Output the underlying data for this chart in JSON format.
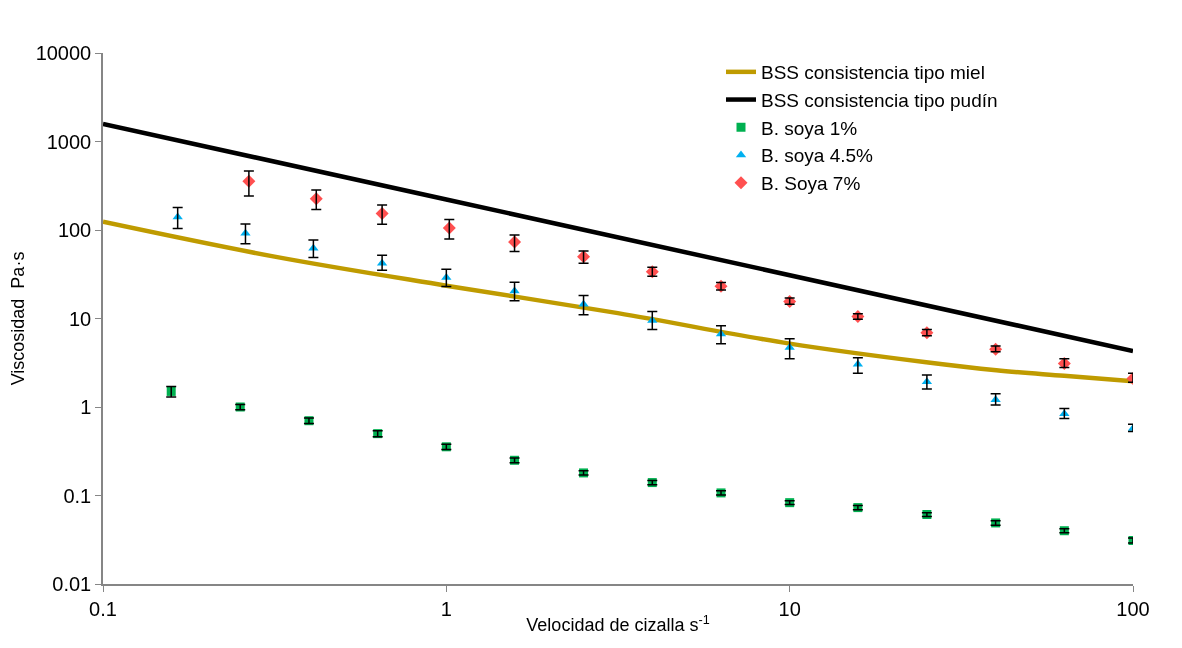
{
  "chart_data": {
    "type": "scatter",
    "xlabel": "Velocidad de cizalla s$^{-1}$",
    "ylabel": "Viscosidad  Pa·s",
    "log": "xy",
    "xlim": [
      0.1,
      100
    ],
    "xticks": [
      0.1,
      1,
      10,
      100
    ],
    "ylim": [
      0.01,
      10000
    ],
    "yticks": [
      0.01,
      0.1,
      1,
      10,
      100,
      1000,
      10000
    ],
    "legend": "top right",
    "series": [
      {
        "name": "BSS consistencia tipo miel",
        "type": "line",
        "color": "#bf9b00",
        "line_style": "solid",
        "marker": "none",
        "x": [
          0.1,
          0.316,
          1,
          3.16,
          10,
          25,
          40,
          63,
          100
        ],
        "values": [
          124,
          50,
          23.5,
          11.5,
          5.2,
          3.2,
          2.6,
          2.25,
          1.95
        ]
      },
      {
        "name": "BSS consistencia tipo pudín",
        "type": "line",
        "color": "#000000",
        "line_style": "solid",
        "marker": "none",
        "x": [
          0.1,
          1,
          100
        ],
        "values": [
          1580,
          221,
          4.3
        ]
      },
      {
        "name": "B. soya 1%",
        "color": "#00b050",
        "marker": "square",
        "x": [
          0.158,
          0.251,
          0.398,
          0.631,
          1,
          1.58,
          2.51,
          3.98,
          6.31,
          10,
          15.8,
          25.1,
          39.8,
          63.1,
          100
        ],
        "values": [
          1.5,
          1.0,
          0.7,
          0.5,
          0.355,
          0.25,
          0.18,
          0.14,
          0.107,
          0.083,
          0.073,
          0.061,
          0.049,
          0.04,
          0.031
        ],
        "errors": [
          [
            1.3,
            1.7
          ],
          [
            0.93,
            1.07
          ],
          [
            0.65,
            0.75
          ],
          [
            0.46,
            0.54
          ],
          [
            0.33,
            0.38
          ],
          [
            0.235,
            0.265
          ],
          [
            0.17,
            0.19
          ],
          [
            0.132,
            0.148
          ],
          [
            0.101,
            0.113
          ],
          [
            0.079,
            0.087
          ],
          [
            0.069,
            0.077
          ],
          [
            0.058,
            0.064
          ],
          [
            0.046,
            0.052
          ],
          [
            0.038,
            0.042
          ],
          [
            0.029,
            0.033
          ]
        ]
      },
      {
        "name": "B. soya 4.5%",
        "color": "#00b0f0",
        "marker": "triangle",
        "x": [
          0.165,
          0.26,
          0.41,
          0.65,
          1,
          1.58,
          2.51,
          3.98,
          6.31,
          10,
          15.8,
          25.1,
          39.8,
          63.1,
          100
        ],
        "values": [
          140,
          92,
          62,
          42,
          29,
          20.5,
          14.5,
          9.5,
          6.7,
          4.7,
          3.05,
          1.93,
          1.21,
          0.84,
          0.57
        ],
        "errors": [
          [
            104,
            180
          ],
          [
            70,
            117
          ],
          [
            49,
            77
          ],
          [
            35,
            52
          ],
          [
            23,
            36
          ],
          [
            15.9,
            25.6
          ],
          [
            11,
            18.2
          ],
          [
            7.5,
            12
          ],
          [
            5.2,
            8.3
          ],
          [
            3.5,
            5.9
          ],
          [
            2.4,
            3.6
          ],
          [
            1.6,
            2.3
          ],
          [
            1.05,
            1.41
          ],
          [
            0.74,
            0.96
          ],
          [
            0.53,
            0.64
          ]
        ]
      },
      {
        "name": "B. Soya 7%",
        "color": "#ff5050",
        "marker": "diamond",
        "x": [
          0.266,
          0.418,
          0.65,
          1.02,
          1.58,
          2.51,
          3.98,
          6.31,
          10,
          15.8,
          25.1,
          39.8,
          63.1,
          100
        ],
        "values": [
          356,
          225,
          154,
          105,
          73,
          50,
          33.8,
          23.1,
          15.6,
          10.5,
          6.9,
          4.5,
          3.1,
          2.1
        ],
        "errors": [
          [
            242,
            464
          ],
          [
            170,
            283
          ],
          [
            116,
            192
          ],
          [
            79,
            131
          ],
          [
            57,
            88
          ],
          [
            42,
            58
          ],
          [
            30,
            38
          ],
          [
            21,
            25.5
          ],
          [
            14.5,
            17
          ],
          [
            9.8,
            11.3
          ],
          [
            6.4,
            7.5
          ],
          [
            4.2,
            4.9
          ],
          [
            2.8,
            3.5
          ],
          [
            1.9,
            2.4
          ]
        ]
      }
    ]
  }
}
